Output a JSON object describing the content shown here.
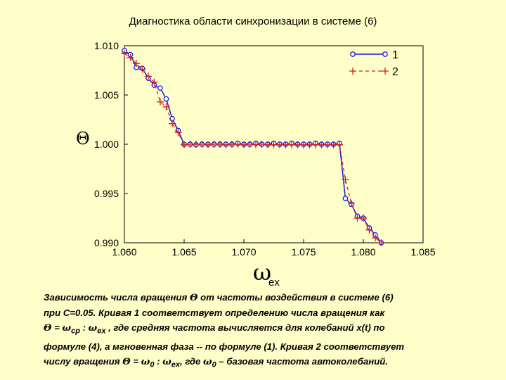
{
  "chart_data": {
    "type": "line",
    "title": "Диагностика области синхронизации в системе (6)",
    "xlabel": "ω",
    "xlabel_sub": "ex",
    "ylabel": "Θ",
    "xlim": [
      1.06,
      1.085
    ],
    "ylim": [
      0.99,
      1.01
    ],
    "x_ticks": [
      "1.060",
      "1.065",
      "1.070",
      "1.075",
      "1.080",
      "1.085"
    ],
    "y_ticks": [
      "0.990",
      "0.995",
      "1.000",
      "1.005",
      "1.010"
    ],
    "legend_position": "top-right",
    "grid": false,
    "series": [
      {
        "name": "1",
        "style": "solid line with circle markers",
        "color": "#1a1ad6",
        "points": [
          [
            1.06,
            1.0095
          ],
          [
            1.0605,
            1.0091
          ],
          [
            1.061,
            1.0078
          ],
          [
            1.0615,
            1.0077
          ],
          [
            1.062,
            1.0067
          ],
          [
            1.0625,
            1.006
          ],
          [
            1.063,
            1.0057
          ],
          [
            1.0635,
            1.0046
          ],
          [
            1.064,
            1.0026
          ],
          [
            1.0645,
            1.0014
          ],
          [
            1.065,
            1.0
          ],
          [
            1.0655,
            1.0
          ],
          [
            1.066,
            0.99995
          ],
          [
            1.0665,
            1.0
          ],
          [
            1.067,
            1.0
          ],
          [
            1.0675,
            1.0
          ],
          [
            1.068,
            1.0
          ],
          [
            1.0685,
            1.0
          ],
          [
            1.069,
            1.0
          ],
          [
            1.0695,
            1.0001
          ],
          [
            1.07,
            1.0
          ],
          [
            1.0705,
            1.0
          ],
          [
            1.071,
            1.0001
          ],
          [
            1.0715,
            1.0
          ],
          [
            1.072,
            1.0
          ],
          [
            1.0725,
            1.0001
          ],
          [
            1.073,
            1.0
          ],
          [
            1.0735,
            1.0
          ],
          [
            1.074,
            1.0001
          ],
          [
            1.0745,
            1.0
          ],
          [
            1.075,
            1.0
          ],
          [
            1.0755,
            1.0
          ],
          [
            1.076,
            1.0001
          ],
          [
            1.0765,
            1.0
          ],
          [
            1.077,
            1.0
          ],
          [
            1.0775,
            1.0
          ],
          [
            1.078,
            1.0001
          ],
          [
            1.0785,
            0.9945
          ],
          [
            1.079,
            0.9939
          ],
          [
            1.0795,
            0.9927
          ],
          [
            1.08,
            0.9925
          ],
          [
            1.0805,
            0.9915
          ],
          [
            1.081,
            0.9908
          ],
          [
            1.0815,
            0.99
          ]
        ]
      },
      {
        "name": "2",
        "style": "dashed line with plus markers",
        "color": "#d42020",
        "points": [
          [
            1.06,
            1.0092
          ],
          [
            1.0605,
            1.0088
          ],
          [
            1.061,
            1.0082
          ],
          [
            1.0615,
            1.0076
          ],
          [
            1.062,
            1.0069
          ],
          [
            1.0625,
            1.0063
          ],
          [
            1.063,
            1.0043
          ],
          [
            1.0635,
            1.0038
          ],
          [
            1.064,
            1.0021
          ],
          [
            1.0645,
            1.0012
          ],
          [
            1.065,
            0.99995
          ],
          [
            1.0655,
            1.0
          ],
          [
            1.066,
            1.0
          ],
          [
            1.0665,
            1.0
          ],
          [
            1.067,
            0.99995
          ],
          [
            1.0675,
            1.0
          ],
          [
            1.068,
            1.0
          ],
          [
            1.0685,
            0.99995
          ],
          [
            1.069,
            1.0
          ],
          [
            1.0695,
            1.0
          ],
          [
            1.07,
            0.99995
          ],
          [
            1.0705,
            1.0
          ],
          [
            1.071,
            0.99995
          ],
          [
            1.0715,
            1.0
          ],
          [
            1.072,
            0.99995
          ],
          [
            1.0725,
            0.99995
          ],
          [
            1.073,
            0.99995
          ],
          [
            1.0735,
            0.99995
          ],
          [
            1.074,
            0.99995
          ],
          [
            1.0745,
            0.99995
          ],
          [
            1.075,
            0.99995
          ],
          [
            1.0755,
            0.99995
          ],
          [
            1.076,
            0.99995
          ],
          [
            1.0765,
            0.99995
          ],
          [
            1.077,
            0.99995
          ],
          [
            1.0775,
            0.99995
          ],
          [
            1.078,
            0.99995
          ],
          [
            1.0785,
            0.9964
          ],
          [
            1.079,
            0.994
          ],
          [
            1.0795,
            0.9925
          ],
          [
            1.08,
            0.9925
          ],
          [
            1.0805,
            0.9913
          ],
          [
            1.081,
            0.9905
          ],
          [
            1.0815,
            0.99
          ]
        ]
      }
    ]
  },
  "caption": {
    "line1_a": "Зависимость числа вращения ",
    "line1_theta": "Θ",
    "line1_b": " от частоты воздействия в системе (6)",
    "line2": "при С=0.05. Кривая 1 соответствует определению числа вращения как",
    "line3_theta": "Θ",
    "line3_eq": " = ",
    "line3_omega1": "ω",
    "line3_sub1": "ср",
    "line3_colon": " : ",
    "line3_omega2": "ω",
    "line3_sub2": "ex",
    "line3_b": " , где средняя частота вычисляется для колебаний x(t) по",
    "line4": "формуле (4), а мгновенная фаза -- по формуле (1). Кривая 2 соответствует",
    "line5_a": "числу вращения ",
    "line5_theta": "Θ",
    "line5_eq": " = ",
    "line5_omega1": "ω",
    "line5_sub1": "0",
    "line5_colon": " : ",
    "line5_omega2": "ω",
    "line5_sub2": "ex",
    "line5_b": ", где ",
    "line5_omega3": "ω",
    "line5_sub3": "0",
    "line5_c": " – базовая частота автоколебаний."
  }
}
